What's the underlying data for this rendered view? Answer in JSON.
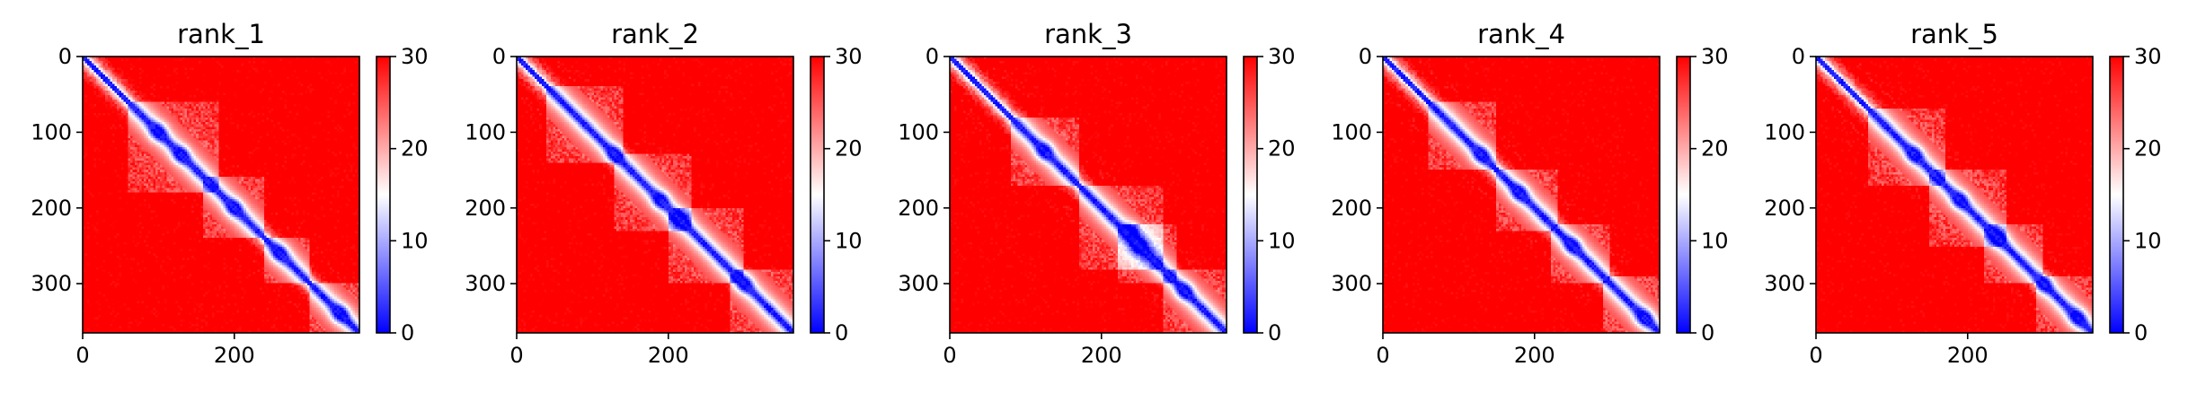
{
  "figure": {
    "colors": {
      "low": "#0000ff",
      "mid": "#ffffff",
      "high": "#ff0000",
      "axis": "#000000"
    }
  },
  "chart_data": [
    {
      "type": "heatmap",
      "title": "rank_1",
      "xlabel": "",
      "ylabel": "",
      "x_ticks": [
        0,
        200
      ],
      "y_ticks": [
        0,
        100,
        200,
        300
      ],
      "xlim": [
        0,
        365
      ],
      "ylim": [
        365,
        0
      ],
      "colorbar": {
        "ticks": [
          0,
          10,
          20,
          30
        ],
        "range": [
          0,
          30
        ],
        "cmap": "bwr"
      },
      "matrix_size": 365,
      "diagonal_value": 0,
      "background_value": 30,
      "domains": [
        [
          60,
          180
        ],
        [
          160,
          240
        ],
        [
          240,
          300
        ],
        [
          300,
          365
        ]
      ],
      "blue_spots": [
        [
          100,
          100
        ],
        [
          130,
          130
        ],
        [
          200,
          200
        ],
        [
          260,
          260
        ],
        [
          340,
          340
        ]
      ]
    },
    {
      "type": "heatmap",
      "title": "rank_2",
      "xlabel": "",
      "ylabel": "",
      "x_ticks": [
        0,
        200
      ],
      "y_ticks": [
        0,
        100,
        200,
        300
      ],
      "xlim": [
        0,
        365
      ],
      "ylim": [
        365,
        0
      ],
      "colorbar": {
        "ticks": [
          0,
          10,
          20,
          30
        ],
        "range": [
          0,
          30
        ],
        "cmap": "bwr"
      },
      "matrix_size": 365,
      "diagonal_value": 0,
      "background_value": 30,
      "domains": [
        [
          40,
          140
        ],
        [
          130,
          230
        ],
        [
          200,
          300
        ],
        [
          280,
          365
        ]
      ],
      "blue_spots": [
        [
          130,
          130
        ],
        [
          190,
          190
        ],
        [
          215,
          215
        ],
        [
          300,
          300
        ]
      ]
    },
    {
      "type": "heatmap",
      "title": "rank_3",
      "xlabel": "",
      "ylabel": "",
      "x_ticks": [
        0,
        200
      ],
      "y_ticks": [
        0,
        100,
        200,
        300
      ],
      "xlim": [
        0,
        365
      ],
      "ylim": [
        365,
        0
      ],
      "colorbar": {
        "ticks": [
          0,
          10,
          20,
          30
        ],
        "range": [
          0,
          30
        ],
        "cmap": "bwr"
      },
      "matrix_size": 365,
      "diagonal_value": 0,
      "background_value": 30,
      "domains": [
        [
          80,
          170
        ],
        [
          170,
          280
        ],
        [
          220,
          300
        ],
        [
          280,
          365
        ]
      ],
      "blue_spots": [
        [
          125,
          125
        ],
        [
          230,
          240
        ],
        [
          250,
          250
        ],
        [
          310,
          310
        ]
      ]
    },
    {
      "type": "heatmap",
      "title": "rank_4",
      "xlabel": "",
      "ylabel": "",
      "x_ticks": [
        0,
        200
      ],
      "y_ticks": [
        0,
        100,
        200,
        300
      ],
      "xlim": [
        0,
        365
      ],
      "ylim": [
        365,
        0
      ],
      "colorbar": {
        "ticks": [
          0,
          10,
          20,
          30
        ],
        "range": [
          0,
          30
        ],
        "cmap": "bwr"
      },
      "matrix_size": 365,
      "diagonal_value": 0,
      "background_value": 30,
      "domains": [
        [
          60,
          150
        ],
        [
          150,
          230
        ],
        [
          220,
          300
        ],
        [
          290,
          365
        ]
      ],
      "blue_spots": [
        [
          130,
          130
        ],
        [
          180,
          180
        ],
        [
          250,
          250
        ],
        [
          345,
          345
        ]
      ]
    },
    {
      "type": "heatmap",
      "title": "rank_5",
      "xlabel": "",
      "ylabel": "",
      "x_ticks": [
        0,
        200
      ],
      "y_ticks": [
        0,
        100,
        200,
        300
      ],
      "xlim": [
        0,
        365
      ],
      "ylim": [
        365,
        0
      ],
      "colorbar": {
        "ticks": [
          0,
          10,
          20,
          30
        ],
        "range": [
          0,
          30
        ],
        "cmap": "bwr"
      },
      "matrix_size": 365,
      "diagonal_value": 0,
      "background_value": 30,
      "domains": [
        [
          70,
          170
        ],
        [
          150,
          250
        ],
        [
          220,
          300
        ],
        [
          290,
          365
        ]
      ],
      "blue_spots": [
        [
          130,
          130
        ],
        [
          190,
          190
        ],
        [
          240,
          240
        ],
        [
          300,
          300
        ],
        [
          345,
          345
        ]
      ]
    }
  ]
}
